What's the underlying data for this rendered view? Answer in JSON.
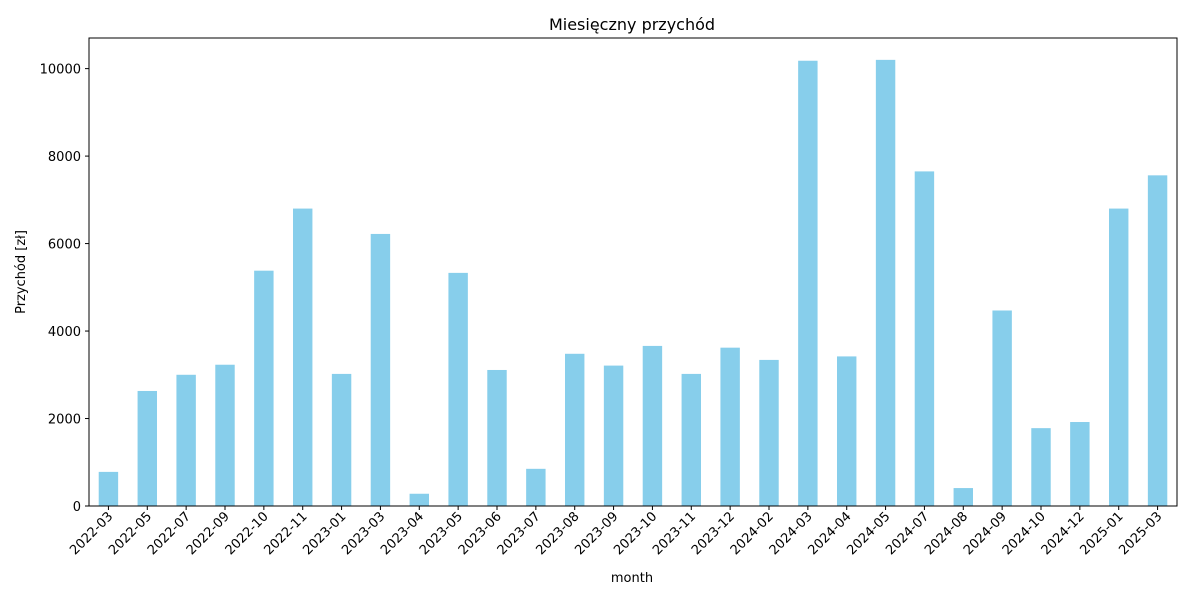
{
  "chart_data": {
    "type": "bar",
    "title": "Miesięczny przychód",
    "xlabel": "month",
    "ylabel": "Przychód [zł]",
    "categories": [
      "2022-03",
      "2022-05",
      "2022-07",
      "2022-09",
      "2022-10",
      "2022-11",
      "2023-01",
      "2023-03",
      "2023-04",
      "2023-05",
      "2023-06",
      "2023-07",
      "2023-08",
      "2023-09",
      "2023-10",
      "2023-11",
      "2023-12",
      "2024-02",
      "2024-03",
      "2024-04",
      "2024-05",
      "2024-07",
      "2024-08",
      "2024-09",
      "2024-10",
      "2024-12",
      "2025-01",
      "2025-03"
    ],
    "values": [
      780,
      2630,
      3000,
      3230,
      5380,
      6800,
      3020,
      6220,
      280,
      5330,
      3110,
      850,
      3480,
      3210,
      3660,
      3020,
      3620,
      3340,
      10180,
      3420,
      10200,
      7650,
      410,
      4470,
      1780,
      1920,
      6800,
      7560
    ],
    "ylim": [
      0,
      10700
    ],
    "yticks": [
      0,
      2000,
      4000,
      6000,
      8000,
      10000
    ],
    "bar_color": "#87ceeb",
    "grid": false,
    "legend": "none"
  }
}
